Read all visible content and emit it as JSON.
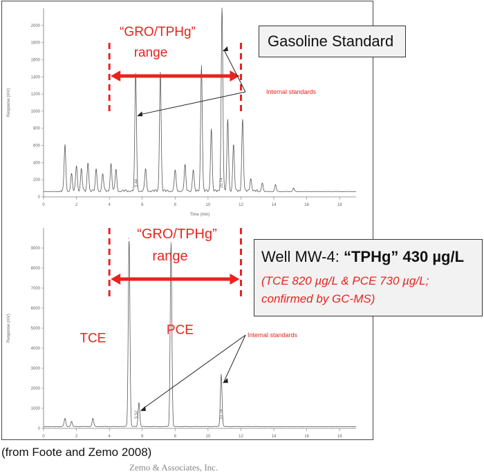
{
  "colors": {
    "accent": "#e8231f",
    "trace": "#555555",
    "box_bg": "#f2f2f2"
  },
  "chart_data": [
    {
      "type": "line",
      "title": "Gasoline Standard",
      "xlabel": "Time (min)",
      "ylabel": "Response (mV)",
      "xlim": [
        0,
        19
      ],
      "ylim": [
        0,
        2200
      ],
      "x_ticks": [
        "0",
        "2",
        "4",
        "6",
        "8",
        "10",
        "12",
        "14",
        "16",
        "18"
      ],
      "y_ticks": [
        "0",
        "200",
        "400",
        "600",
        "800",
        "1000",
        "1200",
        "1400",
        "1600",
        "1800",
        "2000"
      ],
      "range_label_line1": "“GRO/TPHg”",
      "range_label_line2": "range",
      "range_x": [
        4.0,
        12.0
      ],
      "peak_labels": [
        "5.44",
        "10.74"
      ],
      "internal_standards_label": "Internal standards",
      "internal_standard_times": [
        5.6,
        10.8
      ],
      "series": [
        {
          "peaks": [
            {
              "x": 1.3,
              "y": 540
            },
            {
              "x": 1.7,
              "y": 200
            },
            {
              "x": 2.0,
              "y": 300
            },
            {
              "x": 2.3,
              "y": 260
            },
            {
              "x": 2.7,
              "y": 330
            },
            {
              "x": 3.2,
              "y": 250
            },
            {
              "x": 3.6,
              "y": 200
            },
            {
              "x": 4.1,
              "y": 320
            },
            {
              "x": 4.4,
              "y": 250
            },
            {
              "x": 5.6,
              "y": 1380
            },
            {
              "x": 6.2,
              "y": 260
            },
            {
              "x": 7.1,
              "y": 1390
            },
            {
              "x": 8.0,
              "y": 250
            },
            {
              "x": 8.6,
              "y": 300
            },
            {
              "x": 9.1,
              "y": 250
            },
            {
              "x": 9.6,
              "y": 1470
            },
            {
              "x": 10.2,
              "y": 730
            },
            {
              "x": 10.85,
              "y": 2150
            },
            {
              "x": 11.2,
              "y": 830
            },
            {
              "x": 11.55,
              "y": 540
            },
            {
              "x": 12.1,
              "y": 840
            },
            {
              "x": 12.6,
              "y": 150
            },
            {
              "x": 13.3,
              "y": 100
            },
            {
              "x": 14.1,
              "y": 80
            },
            {
              "x": 15.2,
              "y": 40
            }
          ],
          "baseline": 60
        }
      ]
    },
    {
      "type": "line",
      "title": "",
      "xlabel": "",
      "ylabel": "Response (mV)",
      "xlim": [
        0,
        19
      ],
      "ylim": [
        0,
        10000
      ],
      "x_ticks": [
        "0",
        "2",
        "4",
        "6",
        "8",
        "10",
        "12",
        "14",
        "16",
        "18"
      ],
      "y_ticks": [
        "0",
        "1000",
        "2000",
        "3000",
        "4000",
        "5000",
        "6000",
        "7000",
        "8000",
        "9000"
      ],
      "range_label_line1": "“GRO/TPHg”",
      "range_label_line2": "range",
      "range_x": [
        4.0,
        12.0
      ],
      "peak_labels": [
        "5.52",
        "10.74"
      ],
      "internal_standards_label": "Internal standards",
      "internal_standard_times": [
        5.8,
        10.8
      ],
      "compound_labels": [
        {
          "text": "TCE",
          "x": 3.0,
          "y": 4300
        },
        {
          "text": "PCE",
          "x": 8.3,
          "y": 4700
        }
      ],
      "series": [
        {
          "peaks": [
            {
              "x": 1.3,
              "y": 400
            },
            {
              "x": 1.7,
              "y": 250
            },
            {
              "x": 3.0,
              "y": 400
            },
            {
              "x": 5.2,
              "y": 9400
            },
            {
              "x": 5.8,
              "y": 1200
            },
            {
              "x": 7.75,
              "y": 9200
            },
            {
              "x": 10.8,
              "y": 2600
            }
          ],
          "baseline": 80
        }
      ]
    }
  ],
  "annotations": {
    "top_box": "Gasoline Standard",
    "bottom_box_prefix": "Well MW-4: ",
    "bottom_box_bold": "“TPHg” 430 µg/L",
    "bottom_box_line2": "(TCE 820 µg/L & PCE 730 µg/L;",
    "bottom_box_line3": "confirmed by GC-MS)",
    "source": "(from Foote and Zemo 2008)",
    "company": "Zemo & Associates, Inc."
  }
}
